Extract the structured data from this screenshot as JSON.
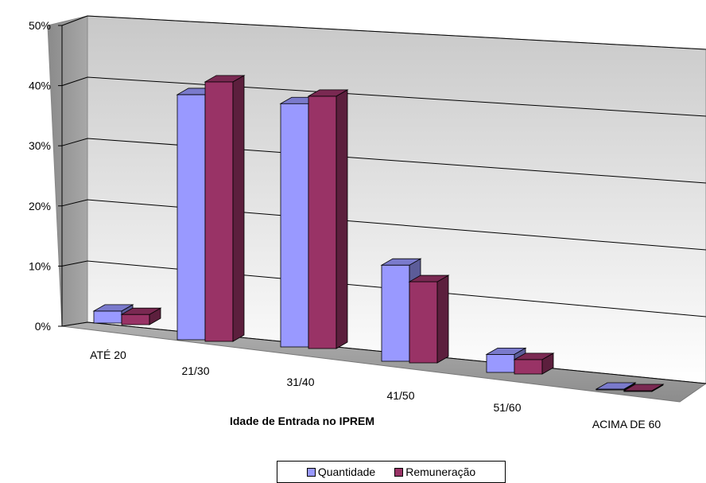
{
  "chart_data": {
    "type": "bar",
    "title": "",
    "xlabel": "Idade de Entrada no IPREM",
    "ylabel": "",
    "categories": [
      "ATÉ 20",
      "21/30",
      "31/40",
      "41/50",
      "51/60",
      "ACIMA DE 60"
    ],
    "series": [
      {
        "name": "Quantidade",
        "values": [
          2.0,
          40.8,
          40.5,
          16.0,
          3.0,
          0.1
        ],
        "color": "#9999ff"
      },
      {
        "name": "Remuneração",
        "values": [
          1.7,
          43.2,
          42.0,
          13.5,
          2.4,
          0.1
        ],
        "color": "#993366"
      }
    ],
    "ylim": [
      0,
      50
    ],
    "yticks": [
      "0%",
      "10%",
      "20%",
      "30%",
      "40%",
      "50%"
    ],
    "grid": true,
    "legend_position": "bottom"
  }
}
